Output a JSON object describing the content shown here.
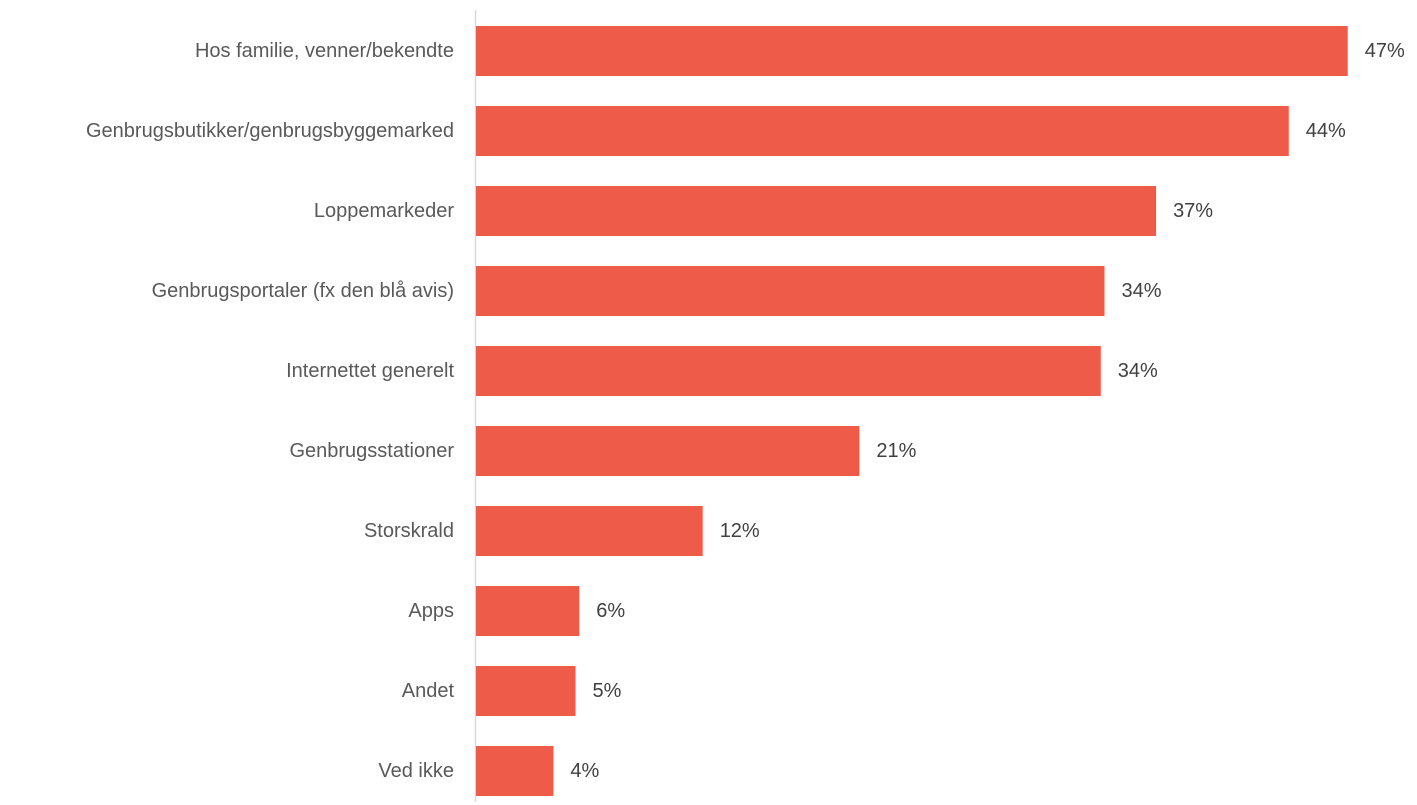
{
  "chart_data": {
    "type": "bar",
    "orientation": "horizontal",
    "categories": [
      "Hos familie, venner/bekendte",
      "Genbrugsbutikker/genbrugsbyggemarked",
      "Loppemarkeder",
      "Genbrugsportaler (fx den blå avis)",
      "Internettet generelt",
      "Genbrugsstationer",
      "Storskrald",
      "Apps",
      "Andet",
      "Ved ikke"
    ],
    "values": [
      47.3,
      44.1,
      36.9,
      34.1,
      33.9,
      20.8,
      12.3,
      5.6,
      5.4,
      4.2
    ],
    "value_labels": [
      "47%",
      "44%",
      "37%",
      "34%",
      "34%",
      "21%",
      "12%",
      "6%",
      "5%",
      "4%"
    ],
    "bar_color": "#EE5B49",
    "axis_color": "#D9D9D9",
    "grid": false,
    "legend": "none"
  }
}
